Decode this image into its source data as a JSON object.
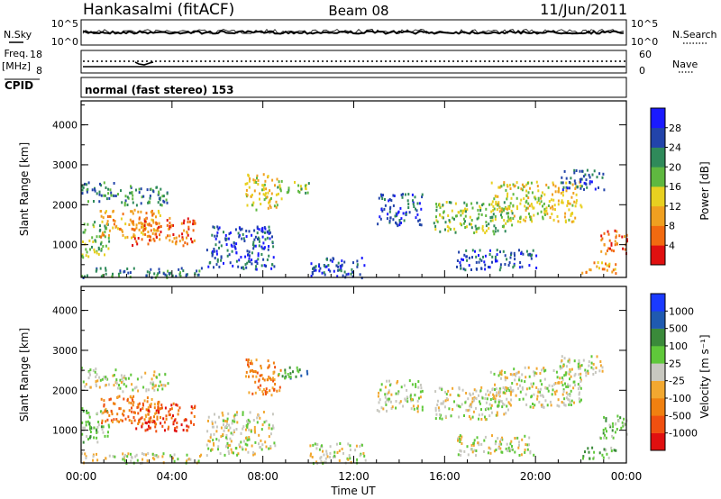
{
  "header": {
    "station": "Hankasalmi (fitACF)",
    "beam": "Beam 08",
    "date": "11/Jun/2011"
  },
  "sky_panel": {
    "left_label": "N.Sky",
    "left_ticks": [
      "10^5",
      "10^0"
    ],
    "right_label": "N.Search",
    "right_ticks": [
      "10^5",
      "10^0"
    ]
  },
  "freq_panel": {
    "label_line1": "Freq.",
    "label_line2": "[MHz]",
    "left_ticks": [
      "18",
      "8"
    ],
    "right_label": "Nave",
    "right_ticks": [
      "60",
      "0"
    ]
  },
  "cpid_panel": {
    "label": "CPID",
    "mode_text": "normal (fast stereo) 153"
  },
  "chart_data": [
    {
      "type": "heatmap",
      "ylabel": "Slant Range [km]",
      "xlabel": "Time UT",
      "x_ticks": [
        "00:00",
        "04:00",
        "08:00",
        "12:00",
        "16:00",
        "20:00",
        "00:00"
      ],
      "xlim_hours": [
        0,
        24
      ],
      "ylim": [
        180,
        4600
      ],
      "y_ticks": [
        "1000",
        "2000",
        "3000",
        "4000"
      ],
      "colorbar": {
        "label": "Power [dB]",
        "ticks": [
          "4",
          "8",
          "12",
          "16",
          "20",
          "24",
          "28"
        ],
        "colors": [
          "#1a1aff",
          "#2244aa",
          "#2f8a5a",
          "#5fb840",
          "#e8d020",
          "#f0a020",
          "#f26a10",
          "#e01010"
        ]
      },
      "echo_bands": [
        {
          "t0": 0.0,
          "t1": 5.3,
          "r0": 200,
          "r1": 450,
          "level": 2
        },
        {
          "t0": 0.0,
          "t1": 1.2,
          "r0": 700,
          "r1": 1600,
          "level": 3
        },
        {
          "t0": 0.0,
          "t1": 1.5,
          "r0": 2100,
          "r1": 2600,
          "level": 2
        },
        {
          "t0": 0.8,
          "t1": 3.5,
          "r0": 1200,
          "r1": 1900,
          "level": 5
        },
        {
          "t0": 2.2,
          "t1": 5.0,
          "r0": 1000,
          "r1": 1700,
          "level": 6
        },
        {
          "t0": 1.5,
          "t1": 3.8,
          "r0": 2000,
          "r1": 2500,
          "level": 2
        },
        {
          "t0": 5.5,
          "t1": 8.5,
          "r0": 400,
          "r1": 1500,
          "level": 1
        },
        {
          "t0": 7.2,
          "t1": 8.8,
          "r0": 1900,
          "r1": 2800,
          "level": 4
        },
        {
          "t0": 8.5,
          "t1": 10.0,
          "r0": 2300,
          "r1": 2600,
          "level": 3
        },
        {
          "t0": 10.0,
          "t1": 12.5,
          "r0": 200,
          "r1": 700,
          "level": 1
        },
        {
          "t0": 13.0,
          "t1": 15.0,
          "r0": 1500,
          "r1": 2300,
          "level": 1
        },
        {
          "t0": 15.5,
          "t1": 19.0,
          "r0": 1300,
          "r1": 2100,
          "level": 3
        },
        {
          "t0": 18.0,
          "t1": 22.0,
          "r0": 1600,
          "r1": 2600,
          "level": 4
        },
        {
          "t0": 16.5,
          "t1": 20.0,
          "r0": 400,
          "r1": 900,
          "level": 1
        },
        {
          "t0": 21.0,
          "t1": 23.0,
          "r0": 2400,
          "r1": 2900,
          "level": 1
        },
        {
          "t0": 22.8,
          "t1": 24.0,
          "r0": 800,
          "r1": 1400,
          "level": 6
        },
        {
          "t0": 22.0,
          "t1": 23.5,
          "r0": 300,
          "r1": 600,
          "level": 5
        }
      ]
    },
    {
      "type": "heatmap",
      "ylabel": "Slant Range [km]",
      "xlabel": "Time UT",
      "x_ticks": [
        "00:00",
        "04:00",
        "08:00",
        "12:00",
        "16:00",
        "20:00",
        "00:00"
      ],
      "xlim_hours": [
        0,
        24
      ],
      "ylim": [
        180,
        4600
      ],
      "y_ticks": [
        "1000",
        "2000",
        "3000",
        "4000"
      ],
      "colorbar": {
        "label": "Velocity [m s⁻¹]",
        "ticks": [
          "1000",
          "500",
          "100",
          "25",
          "-25",
          "-100",
          "-500",
          "-1000"
        ],
        "colors": [
          "#1a3aff",
          "#1f5ab0",
          "#3a8a3a",
          "#5fc83a",
          "#c8c8c0",
          "#f2a830",
          "#f08010",
          "#f05010",
          "#e01010"
        ]
      },
      "echo_bands": [
        {
          "t0": 0.0,
          "t1": 5.3,
          "r0": 200,
          "r1": 450,
          "level": 4
        },
        {
          "t0": 0.0,
          "t1": 1.2,
          "r0": 700,
          "r1": 1600,
          "level": 3
        },
        {
          "t0": 0.0,
          "t1": 1.5,
          "r0": 2100,
          "r1": 2600,
          "level": 4
        },
        {
          "t0": 0.8,
          "t1": 3.5,
          "r0": 1200,
          "r1": 1900,
          "level": 6
        },
        {
          "t0": 2.2,
          "t1": 5.0,
          "r0": 1000,
          "r1": 1700,
          "level": 7
        },
        {
          "t0": 1.5,
          "t1": 3.8,
          "r0": 2000,
          "r1": 2500,
          "level": 4
        },
        {
          "t0": 5.5,
          "t1": 8.5,
          "r0": 400,
          "r1": 1500,
          "level": 4
        },
        {
          "t0": 7.2,
          "t1": 8.8,
          "r0": 1900,
          "r1": 2800,
          "level": 6
        },
        {
          "t0": 8.5,
          "t1": 10.0,
          "r0": 2300,
          "r1": 2600,
          "level": 2
        },
        {
          "t0": 10.0,
          "t1": 12.5,
          "r0": 200,
          "r1": 700,
          "level": 4
        },
        {
          "t0": 13.0,
          "t1": 15.0,
          "r0": 1500,
          "r1": 2300,
          "level": 4
        },
        {
          "t0": 15.5,
          "t1": 19.0,
          "r0": 1300,
          "r1": 2100,
          "level": 4
        },
        {
          "t0": 18.0,
          "t1": 22.0,
          "r0": 1600,
          "r1": 2600,
          "level": 4
        },
        {
          "t0": 16.5,
          "t1": 20.0,
          "r0": 400,
          "r1": 900,
          "level": 4
        },
        {
          "t0": 21.0,
          "t1": 23.0,
          "r0": 2400,
          "r1": 2900,
          "level": 4
        },
        {
          "t0": 22.8,
          "t1": 24.0,
          "r0": 800,
          "r1": 1400,
          "level": 3
        },
        {
          "t0": 22.0,
          "t1": 23.5,
          "r0": 300,
          "r1": 600,
          "level": 3
        }
      ]
    }
  ]
}
